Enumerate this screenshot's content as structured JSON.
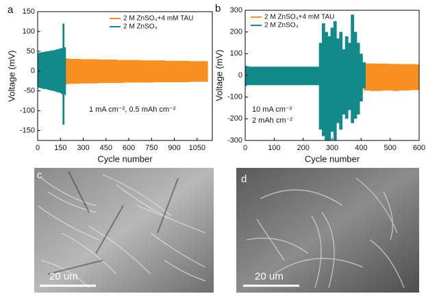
{
  "chart_data": [
    {
      "type": "band",
      "panel": "a",
      "ylabel": "Voltage (mV)",
      "xlabel": "Cycle number",
      "xlim": [
        0,
        1150
      ],
      "xticks": [
        0,
        150,
        300,
        450,
        600,
        750,
        900,
        1050
      ],
      "ylim": [
        -175,
        150
      ],
      "yticks": [
        -150,
        -100,
        -50,
        0,
        50,
        100,
        150
      ],
      "legend": "upper right",
      "annotations": [
        "1 mA cm⁻², 0.5 mAh cm⁻²"
      ],
      "series": [
        {
          "name": "2 M ZnSO₄+4 mM TAU",
          "color": "#f7901e",
          "x": [
            180,
            220,
            260,
            300,
            340,
            380,
            420,
            460,
            500,
            540,
            580,
            620,
            660,
            700,
            740,
            780,
            820,
            860,
            900,
            940,
            980,
            1020,
            1060,
            1100
          ],
          "max": [
            32,
            31,
            31,
            30,
            30,
            30,
            29,
            29,
            29,
            28,
            28,
            28,
            28,
            27,
            27,
            27,
            27,
            26,
            26,
            26,
            26,
            25,
            25,
            25
          ],
          "min": [
            -33,
            -32,
            -32,
            -31,
            -31,
            -31,
            -30,
            -30,
            -30,
            -30,
            -29,
            -29,
            -29,
            -29,
            -29,
            -28,
            -28,
            -28,
            -28,
            -28,
            -28,
            -27,
            -27,
            -27
          ]
        },
        {
          "name": "2 M ZnSO₄",
          "color": "#138a8a",
          "x": [
            0,
            10,
            20,
            30,
            40,
            50,
            60,
            70,
            80,
            90,
            100,
            110,
            120,
            130,
            140,
            150,
            160,
            170,
            180
          ],
          "max": [
            45,
            46,
            47,
            48,
            48,
            49,
            50,
            50,
            51,
            52,
            52,
            53,
            54,
            55,
            56,
            57,
            58,
            120,
            60
          ],
          "min": [
            -40,
            -42,
            -43,
            -44,
            -45,
            -45,
            -46,
            -47,
            -48,
            -49,
            -50,
            -50,
            -52,
            -53,
            -54,
            -55,
            -58,
            -135,
            -60
          ]
        }
      ]
    },
    {
      "type": "band",
      "panel": "b",
      "ylabel": "Voltage (mV)",
      "xlabel": "Cycle number",
      "xlim": [
        0,
        600
      ],
      "xticks": [
        0,
        100,
        200,
        300,
        400,
        500,
        600
      ],
      "ylim": [
        -300,
        300
      ],
      "yticks": [
        -300,
        -200,
        -100,
        0,
        100,
        200,
        300
      ],
      "legend": "upper left",
      "annotations": [
        "10 mA cm⁻²",
        "2 mAh cm⁻²"
      ],
      "series": [
        {
          "name": "2 M ZnSO₄+4 mM TAU",
          "color": "#f7901e",
          "x": [
            0,
            20,
            40,
            60,
            80,
            100,
            120,
            140,
            160,
            180,
            200,
            220,
            240,
            260,
            280,
            300,
            320,
            340,
            360,
            380,
            400,
            420,
            440,
            460,
            480,
            500,
            520,
            540,
            560,
            580,
            600
          ],
          "max": [
            35,
            35,
            35,
            35,
            35,
            35,
            35,
            35,
            35,
            35,
            35,
            35,
            35,
            35,
            35,
            35,
            35,
            35,
            35,
            35,
            35,
            55,
            55,
            54,
            54,
            53,
            53,
            52,
            52,
            52,
            50
          ],
          "min": [
            -45,
            -45,
            -45,
            -45,
            -45,
            -45,
            -45,
            -45,
            -45,
            -45,
            -45,
            -45,
            -45,
            -45,
            -45,
            -45,
            -45,
            -45,
            -45,
            -45,
            -45,
            -70,
            -72,
            -72,
            -70,
            -70,
            -72,
            -70,
            -70,
            -68,
            -68
          ]
        },
        {
          "name": "2 M ZnSO₄",
          "color": "#138a8a",
          "x": [
            0,
            10,
            20,
            30,
            40,
            50,
            60,
            70,
            80,
            90,
            100,
            110,
            120,
            130,
            140,
            150,
            160,
            170,
            180,
            190,
            200,
            210,
            220,
            230,
            240,
            250,
            260,
            270,
            280,
            290,
            300,
            310,
            320,
            330,
            340,
            350,
            360,
            370,
            380,
            390,
            400,
            410
          ],
          "max": [
            45,
            42,
            40,
            40,
            40,
            40,
            40,
            40,
            40,
            40,
            40,
            40,
            40,
            40,
            40,
            40,
            40,
            40,
            40,
            40,
            40,
            40,
            40,
            40,
            40,
            40,
            150,
            240,
            200,
            180,
            220,
            250,
            170,
            200,
            120,
            180,
            150,
            280,
            200,
            150,
            100,
            60
          ],
          "min": [
            -50,
            -45,
            -45,
            -45,
            -45,
            -45,
            -45,
            -45,
            -45,
            -45,
            -45,
            -45,
            -45,
            -45,
            -45,
            -45,
            -45,
            -45,
            -45,
            -45,
            -45,
            -45,
            -45,
            -45,
            -45,
            -45,
            -250,
            -280,
            -300,
            -300,
            -260,
            -300,
            -220,
            -250,
            -180,
            -200,
            -160,
            -220,
            -200,
            -180,
            -120,
            -60
          ]
        }
      ]
    }
  ],
  "images": [
    {
      "panel": "c",
      "scale_bar": "20 um"
    },
    {
      "panel": "d",
      "scale_bar": "20 um"
    }
  ]
}
